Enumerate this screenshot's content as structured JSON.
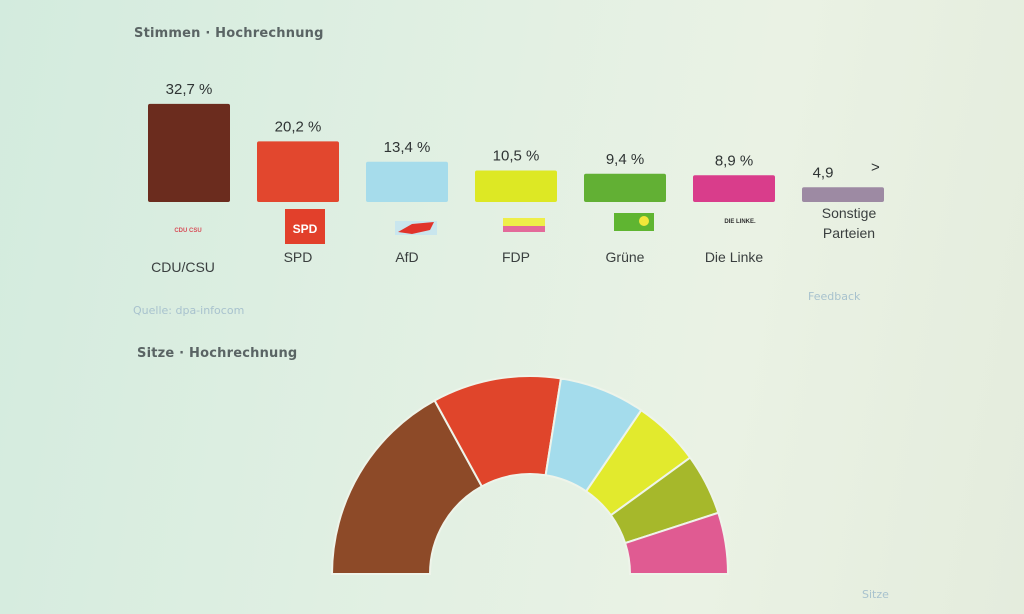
{
  "votes_title": "Stimmen · Hochrechnung",
  "seats_title": "Sitze · Hochrechnung",
  "source_text": "Quelle: dpa-infocom",
  "feedback_text": "Feedback",
  "seats_link_text": "Sitze",
  "logos": {
    "spd": "SPD",
    "cdu": "CDU CSU",
    "linke": "DIE LINKE."
  },
  "chart_data": [
    {
      "type": "bar",
      "title": "Stimmen · Hochrechnung",
      "categories": [
        "CDU/CSU",
        "SPD",
        "AfD",
        "FDP",
        "Grüne",
        "Die Linke",
        "Sonstige Parteien"
      ],
      "category_lines": [
        [
          "CDU/CSU"
        ],
        [
          "SPD"
        ],
        [
          "AfD"
        ],
        [
          "FDP"
        ],
        [
          "Grüne"
        ],
        [
          "Die Linke"
        ],
        [
          "Sonstige",
          "Parteien"
        ]
      ],
      "values": [
        32.7,
        20.2,
        13.4,
        10.5,
        9.4,
        8.9,
        4.9
      ],
      "value_labels": [
        "32,7 %",
        "20,2 %",
        "13,4 %",
        "10,5 %",
        "9,4 %",
        "8,9 %",
        "4,9"
      ],
      "colors": [
        "#6b2c1e",
        "#e2472e",
        "#a6dceb",
        "#dde824",
        "#62b034",
        "#d93d8b",
        "#9d8aa3"
      ],
      "ylim": [
        0,
        35
      ],
      "grid": false,
      "legend": "none",
      "more_indicator": ">"
    },
    {
      "type": "pie",
      "variant": "half-donut",
      "title": "Sitze · Hochrechnung",
      "categories": [
        "CDU/CSU",
        "SPD",
        "AfD",
        "FDP",
        "Grüne",
        "Die Linke"
      ],
      "values": [
        34,
        21,
        14,
        11,
        10,
        10
      ],
      "colors": [
        "#8d4a28",
        "#e0452b",
        "#a4dcec",
        "#e2ea2d",
        "#a6b82b",
        "#e05b92"
      ]
    }
  ]
}
